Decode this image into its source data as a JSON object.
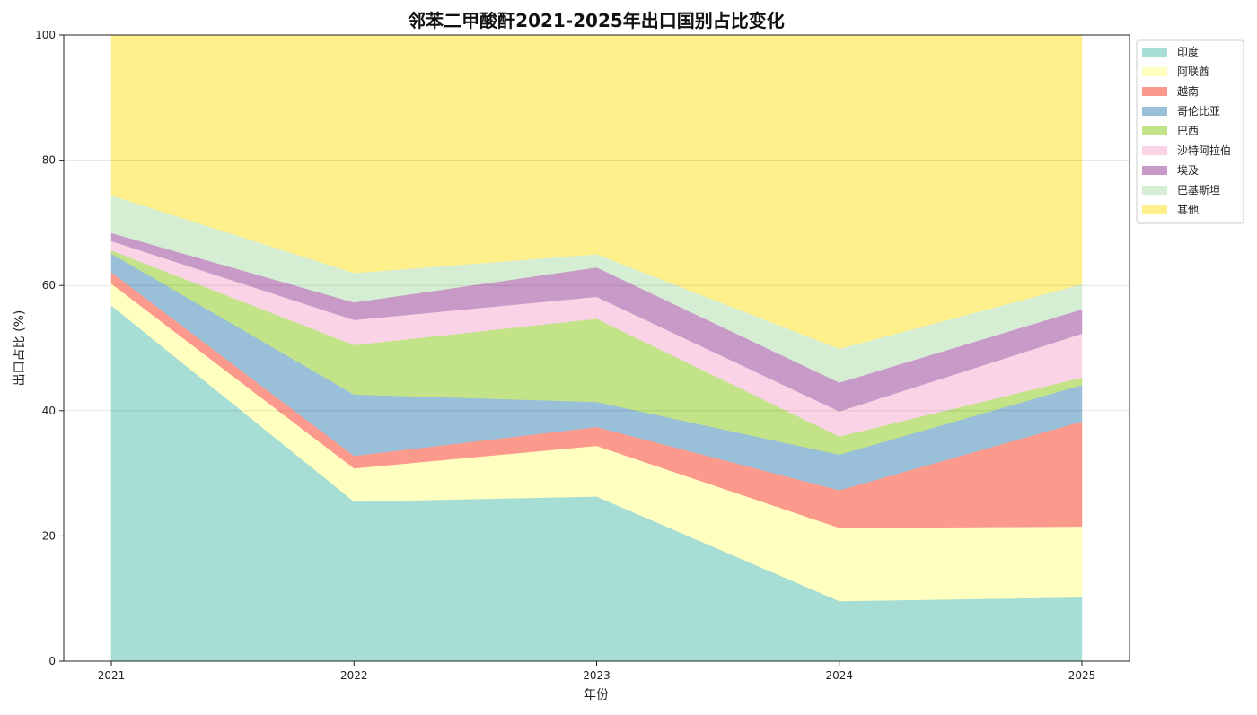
{
  "chart_data": {
    "type": "area",
    "stacked": true,
    "title": "邻苯二甲酸酐2021-2025年出口国别占比变化",
    "xlabel": "年份",
    "ylabel": "出口占比 (%)",
    "x": [
      "2021",
      "2022",
      "2023",
      "2024",
      "2025"
    ],
    "ylim": [
      0,
      100
    ],
    "yticks": [
      0,
      20,
      40,
      60,
      80,
      100
    ],
    "grid": true,
    "legend_position": "top-right",
    "series": [
      {
        "name": "印度",
        "color": "#a6ddd4",
        "values": [
          56.8,
          25.5,
          26.3,
          9.6,
          10.2
        ]
      },
      {
        "name": "阿联酋",
        "color": "#ffffc0",
        "values": [
          3.5,
          5.3,
          8.1,
          11.7,
          11.3
        ]
      },
      {
        "name": "越南",
        "color": "#fb9a8c",
        "values": [
          1.8,
          2.0,
          3.0,
          6.0,
          16.8
        ]
      },
      {
        "name": "哥伦比亚",
        "color": "#99bfd9",
        "values": [
          3.0,
          9.8,
          4.0,
          5.7,
          5.8
        ]
      },
      {
        "name": "巴西",
        "color": "#c2e388",
        "values": [
          0.5,
          7.9,
          13.3,
          2.9,
          1.2
        ]
      },
      {
        "name": "沙特阿拉伯",
        "color": "#fbd3e6",
        "values": [
          1.5,
          4.0,
          3.5,
          4.0,
          7.0
        ]
      },
      {
        "name": "埃及",
        "color": "#c89ac8",
        "values": [
          1.3,
          2.8,
          4.7,
          4.6,
          3.9
        ]
      },
      {
        "name": "巴基斯坦",
        "color": "#d5eed3",
        "values": [
          6.0,
          4.7,
          2.1,
          5.4,
          4.0
        ]
      },
      {
        "name": "其他",
        "color": "#fff08c",
        "values": [
          25.6,
          38.0,
          35.0,
          50.1,
          39.8
        ]
      }
    ]
  }
}
